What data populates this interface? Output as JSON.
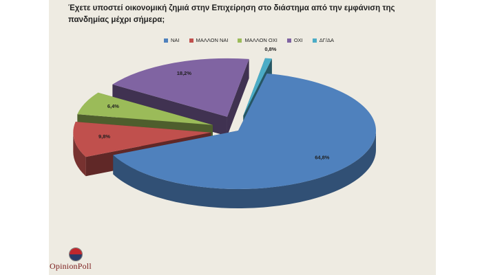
{
  "chart_data": {
    "type": "pie",
    "title": "Έχετε υποστεί οικονομική ζημιά στην Επιχείρηση στο διάστημα από την εμφάνιση της πανδημίας μέχρι σήμερα;",
    "categories": [
      "ΝΑΙ",
      "ΜΑΛΛΟΝ ΝΑΙ",
      "ΜΑΛΛΟΝ ΟΧΙ",
      "ΟΧΙ",
      "ΔΓ/ΔΑ"
    ],
    "values": [
      64.8,
      9.8,
      6.4,
      18.2,
      0.8
    ],
    "labels": [
      "64,8%",
      "9,8%",
      "6,4%",
      "18,2%",
      "0,8%"
    ],
    "colors": [
      "#4f81bd",
      "#c0504d",
      "#9bbb59",
      "#8064a2",
      "#4bacc6"
    ],
    "legend_position": "top",
    "style": "3d-exploded"
  },
  "brand": {
    "logo_text": "OpinionPoll"
  }
}
